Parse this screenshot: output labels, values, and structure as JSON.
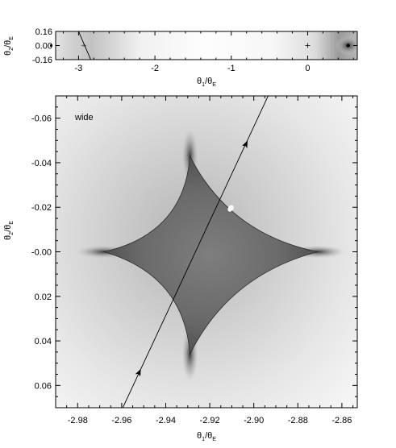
{
  "chart_data": [
    {
      "type": "other",
      "panel": "overview",
      "xlabel_main": "θ",
      "xlabel_sub": "1",
      "xlabel_den_main": "θ",
      "xlabel_den_sub": "E",
      "ylabel_main": "θ",
      "ylabel_sub": "2",
      "ylabel_den_main": "θ",
      "ylabel_den_sub": "E",
      "xlim": [
        -3.3,
        0.65
      ],
      "ylim": [
        0.16,
        -0.16
      ],
      "xticks": [
        -3,
        -2,
        -1,
        0
      ],
      "xtick_labels": [
        "-3",
        "-2",
        "-1",
        "0"
      ],
      "yticks": [
        -0.16,
        0.0,
        0.16
      ],
      "ytick_labels": [
        "-0.16",
        "0.00",
        "0.16"
      ],
      "lens_positions": [
        {
          "x": -2.93,
          "y": 0.0
        },
        {
          "x": 0.0,
          "y": 0.0
        },
        {
          "x": 0.53,
          "y": 0.0
        }
      ],
      "trajectory": [
        {
          "x": -3.02,
          "y": 0.2
        },
        {
          "x": -2.82,
          "y": -0.2
        }
      ]
    },
    {
      "type": "other",
      "panel": "zoom",
      "annotation": "wide",
      "xlabel_main": "θ",
      "xlabel_sub": "1",
      "xlabel_den_main": "θ",
      "xlabel_den_sub": "E",
      "ylabel_main": "θ",
      "ylabel_sub": "2",
      "ylabel_den_main": "θ",
      "ylabel_den_sub": "E",
      "xlim": [
        -2.99,
        -2.853
      ],
      "ylim": [
        -0.07,
        0.07
      ],
      "xticks": [
        -2.98,
        -2.96,
        -2.94,
        -2.92,
        -2.9,
        -2.88,
        -2.86
      ],
      "xtick_labels": [
        "-2.98",
        "-2.96",
        "-2.94",
        "-2.92",
        "-2.90",
        "-2.88",
        "-2.86"
      ],
      "yticks": [
        -0.06,
        -0.04,
        -0.02,
        0.0,
        0.02,
        0.04,
        0.06
      ],
      "ytick_labels": [
        "-0.06",
        "-0.04",
        "-0.02",
        "-0.00",
        "0.02",
        "0.04",
        "0.06"
      ],
      "caustic_cusps": [
        {
          "x": -2.929,
          "y": -0.043
        },
        {
          "x": -2.871,
          "y": 0.0
        },
        {
          "x": -2.929,
          "y": 0.046
        },
        {
          "x": -2.968,
          "y": 0.0
        }
      ],
      "trajectory": [
        {
          "x": -2.9595,
          "y": 0.07
        },
        {
          "x": -2.8935,
          "y": -0.07
        }
      ],
      "arrows": [
        {
          "x": -2.952,
          "y": 0.054
        },
        {
          "x": -2.9035,
          "y": -0.0485
        }
      ],
      "highlight_point": {
        "x": -2.9105,
        "y": -0.0195
      }
    }
  ]
}
